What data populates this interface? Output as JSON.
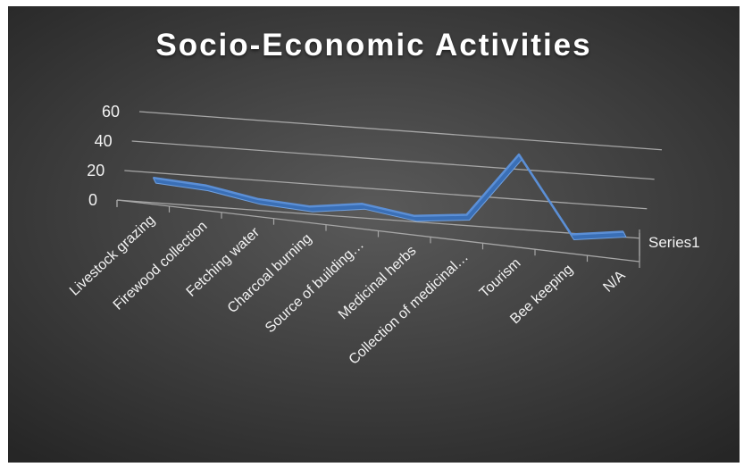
{
  "chart_data": {
    "type": "line",
    "title": "Socio-Economic Activities",
    "categories": [
      "Livestock grazing",
      "Firewood collection",
      "Fetching water",
      "Charcoal burning",
      "Source of building…",
      "Medicinal herbs",
      "Collection of medicinal…",
      "Tourism",
      "Bee keeping",
      "N/A"
    ],
    "series": [
      {
        "name": "Series1",
        "values": [
          10,
          9,
          4,
          3,
          9,
          5,
          10,
          55,
          5,
          11
        ]
      }
    ],
    "yticks": [
      "0",
      "20",
      "40",
      "60"
    ],
    "ylim": [
      0,
      60
    ],
    "grid": true,
    "legend": "right",
    "colors": {
      "background": "#3d3d3d",
      "line": "#5b8fd6",
      "grid": "#a6a6a6",
      "text": "#f2f2f2"
    }
  }
}
